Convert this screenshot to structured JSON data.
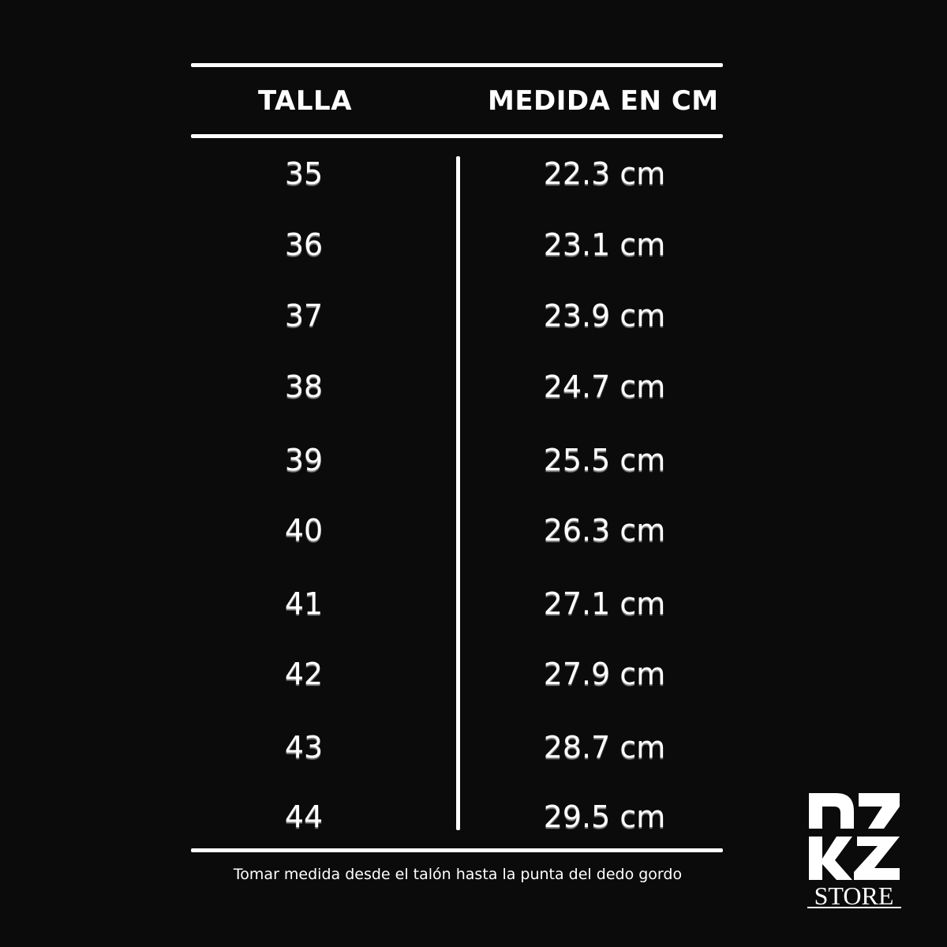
{
  "header": {
    "size_label": "TALLA",
    "measure_label": "MEDIDA EN CM"
  },
  "rows": [
    {
      "size": "35",
      "measure": "22.3 cm"
    },
    {
      "size": "36",
      "measure": "23.1 cm"
    },
    {
      "size": "37",
      "measure": "23.9 cm"
    },
    {
      "size": "38",
      "measure": "24.7 cm"
    },
    {
      "size": "39",
      "measure": "25.5 cm"
    },
    {
      "size": "40",
      "measure": "26.3 cm"
    },
    {
      "size": "41",
      "measure": "27.1 cm"
    },
    {
      "size": "42",
      "measure": "27.9 cm"
    },
    {
      "size": "43",
      "measure": "28.7 cm"
    },
    {
      "size": "44",
      "measure": "29.5 cm"
    }
  ],
  "footnote": "Tomar medida desde el talón hasta la punta del dedo gordo",
  "logo": {
    "mark": "RZ",
    "text": "STORE"
  },
  "colors": {
    "background": "#0b0b0b",
    "foreground": "#ffffff"
  }
}
